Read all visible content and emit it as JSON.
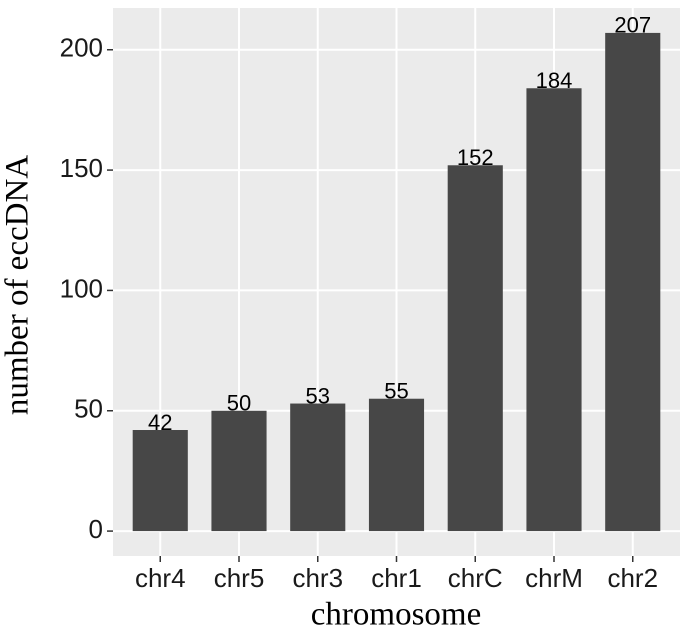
{
  "chart_data": {
    "type": "bar",
    "x_label": "chromosome",
    "y_label": "number of eccDNA",
    "categories": [
      "chr4",
      "chr5",
      "chr3",
      "chr1",
      "chrC",
      "chrM",
      "chr2"
    ],
    "values": [
      42,
      50,
      53,
      55,
      152,
      184,
      207
    ],
    "color": "#474747",
    "ylim": [
      -10.35,
      217.35
    ],
    "yticks": [
      0,
      50,
      100,
      150,
      200
    ],
    "grid": true
  }
}
